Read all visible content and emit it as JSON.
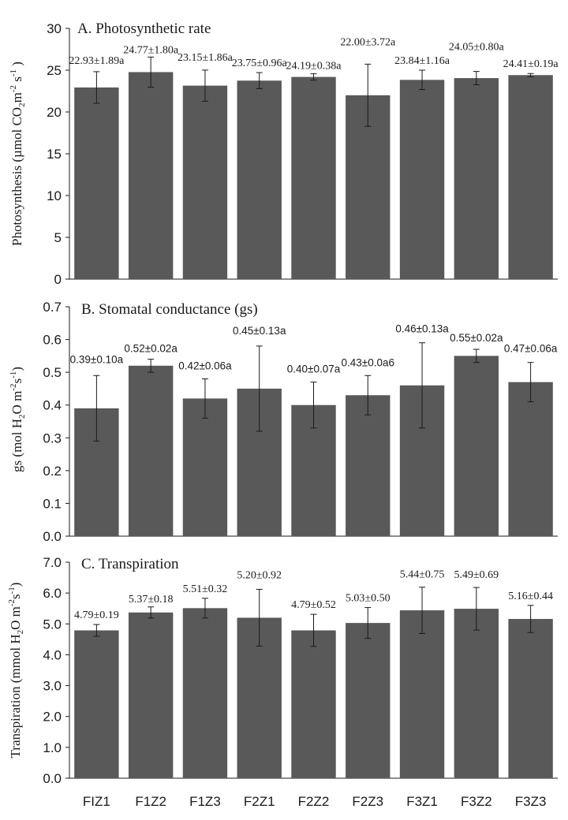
{
  "chart_data": [
    {
      "type": "bar",
      "title": "A. Photosynthetic rate",
      "ylabel": "Photosynthesis (µmol CO2m-2 s-1)",
      "categories": [
        "FIZ1",
        "F1Z2",
        "F1Z3",
        "F2Z1",
        "F2Z2",
        "F2Z3",
        "F3Z1",
        "F3Z2",
        "F3Z3"
      ],
      "values": [
        22.93,
        24.77,
        23.15,
        23.75,
        24.19,
        22.0,
        23.84,
        24.05,
        24.41
      ],
      "errors": [
        1.89,
        1.8,
        1.86,
        0.96,
        0.38,
        3.72,
        1.16,
        0.8,
        0.19
      ],
      "data_labels": [
        "22.93±1.89a",
        "24.77±1.80a",
        "23.15±1.86a",
        "23.75±0.96a",
        "24.19±0.38a",
        "22.00±3.72a",
        "23.84±1.16a",
        "24.05±0.80a",
        "24.41±0.19a"
      ],
      "ylim": [
        0,
        30
      ],
      "yticks": [
        "0",
        "5",
        "10",
        "15",
        "20",
        "25",
        "30"
      ]
    },
    {
      "type": "bar",
      "title": "B. Stomatal conductance (gs)",
      "ylabel": "gs (mol H2O m-2s-1)",
      "categories": [
        "FIZ1",
        "F1Z2",
        "F1Z3",
        "F2Z1",
        "F2Z2",
        "F2Z3",
        "F3Z1",
        "F3Z2",
        "F3Z3"
      ],
      "values": [
        0.39,
        0.52,
        0.42,
        0.45,
        0.4,
        0.43,
        0.46,
        0.55,
        0.47
      ],
      "errors": [
        0.1,
        0.02,
        0.06,
        0.13,
        0.07,
        0.06,
        0.13,
        0.02,
        0.06
      ],
      "data_labels": [
        "0.39±0.10a",
        "0.52±0.02a",
        "0.42±0.06a",
        "0.45±0.13a",
        "0.40±0.07a",
        "0.43±0.0a6",
        "0.46±0.13a",
        "0.55±0.02a",
        "0.47±0.06a"
      ],
      "ylim": [
        0,
        0.7
      ],
      "yticks": [
        "0.0",
        "0.1",
        "0.2",
        "0.3",
        "0.4",
        "0.5",
        "0.6",
        "0.7"
      ]
    },
    {
      "type": "bar",
      "title": "C. Transpiration",
      "ylabel": "Transpiration (mmol H2O m-2s-1)",
      "categories": [
        "FIZ1",
        "F1Z2",
        "F1Z3",
        "F2Z1",
        "F2Z2",
        "F2Z3",
        "F3Z1",
        "F3Z2",
        "F3Z3"
      ],
      "values": [
        4.79,
        5.37,
        5.51,
        5.2,
        4.79,
        5.03,
        5.44,
        5.49,
        5.16
      ],
      "errors": [
        0.19,
        0.18,
        0.32,
        0.92,
        0.52,
        0.5,
        0.75,
        0.69,
        0.44
      ],
      "data_labels": [
        "4.79±0.19",
        "5.37±0.18",
        "5.51±0.32",
        "5.20±0.92",
        "4.79±0.52",
        "5.03±0.50",
        "5.44±0.75",
        "5.49±0.69",
        "5.16±0.44"
      ],
      "ylim": [
        0,
        7
      ],
      "yticks": [
        "0.0",
        "1.0",
        "2.0",
        "3.0",
        "4.0",
        "5.0",
        "6.0",
        "7.0"
      ]
    }
  ],
  "colors": {
    "bar": "#595959",
    "axis": "#1a1a1a",
    "background": "#ffffff"
  },
  "x_tick_labels": [
    "FIZ1",
    "F1Z2",
    "F1Z3",
    "F2Z1",
    "F2Z2",
    "F2Z3",
    "F3Z1",
    "F3Z2",
    "F3Z3"
  ]
}
